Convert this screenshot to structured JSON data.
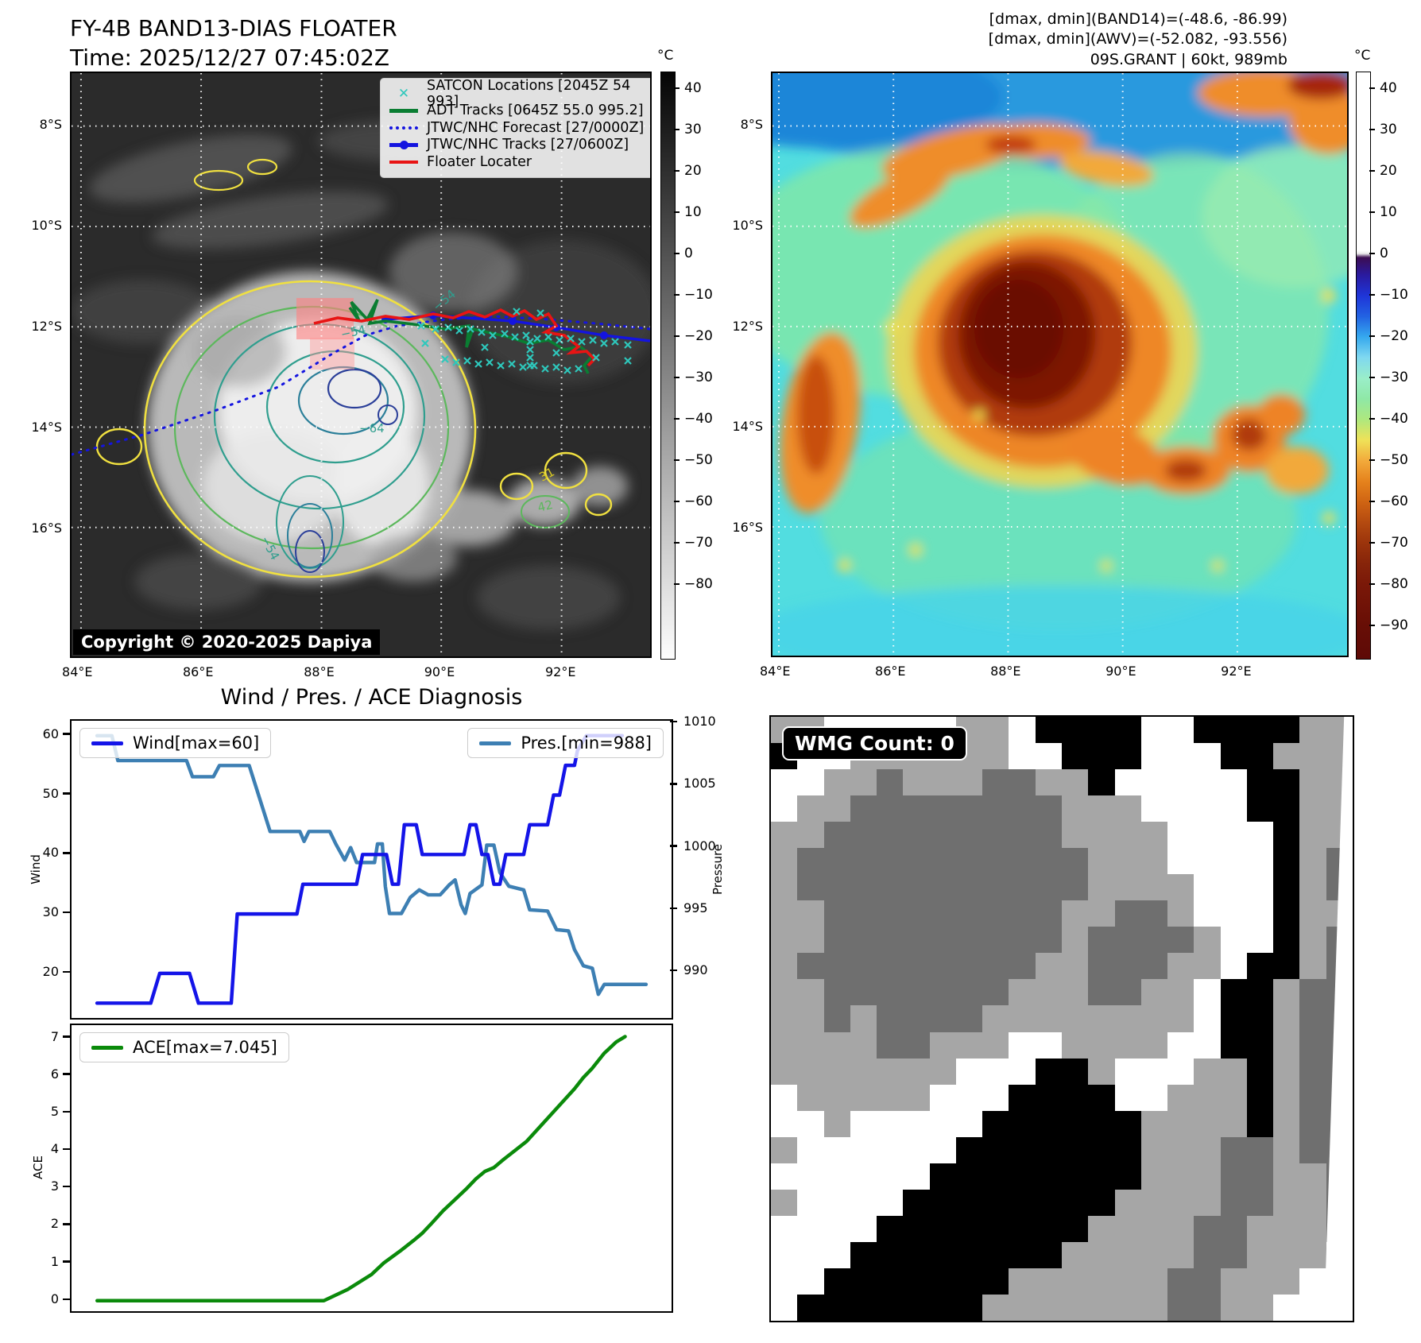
{
  "header": {
    "title": "FY-4B BAND13-DIAS FLOATER",
    "time": "Time: 2025/12/27 07:45:02Z",
    "info_lines": [
      "[dmax, dmin](BAND14)=(-48.6, -86.99)",
      "[dmax, dmin](AWV)=(-52.082, -93.556)",
      "09S.GRANT | 60kt, 989mb"
    ]
  },
  "left_map": {
    "legend": [
      {
        "label": "SATCON Locations [2045Z 54 993]",
        "marker": "x",
        "color": "#2ec8bc"
      },
      {
        "label": "ADT Tracks [0645Z 55.0 995.2]",
        "marker": "line",
        "color": "#0a7d32"
      },
      {
        "label": "JTWC/NHC Forecast [27/0000Z]",
        "marker": "dotted",
        "color": "#1414e0"
      },
      {
        "label": "JTWC/NHC Tracks [27/0600Z]",
        "marker": "line-marker",
        "color": "#1414e0"
      },
      {
        "label": "Floater Locater",
        "marker": "line",
        "color": "#e81414"
      }
    ],
    "copyright": "Copyright © 2020-2025 Dapiya",
    "lat_labels": [
      "8°S",
      "10°S",
      "12°S",
      "14°S",
      "16°S"
    ],
    "lon_labels": [
      "84°E",
      "86°E",
      "88°E",
      "90°E",
      "92°E"
    ],
    "contour_labels": [
      "−54",
      "−54",
      "−64",
      "−54",
      "31",
      "42"
    ],
    "colorbar": {
      "unit": "°C",
      "ticks": [
        40,
        30,
        20,
        10,
        0,
        -10,
        -20,
        -30,
        -40,
        -50,
        -60,
        -70,
        -80
      ]
    }
  },
  "right_map": {
    "lat_labels": [
      "8°S",
      "10°S",
      "12°S",
      "14°S",
      "16°S"
    ],
    "lon_labels": [
      "84°E",
      "86°E",
      "88°E",
      "90°E",
      "92°E"
    ],
    "colorbar": {
      "unit": "°C",
      "ticks": [
        40,
        30,
        20,
        10,
        0,
        -10,
        -20,
        -30,
        -40,
        -50,
        -60,
        -70,
        -80,
        -90
      ]
    }
  },
  "diagnosis": {
    "title": "Wind / Pres. / ACE Diagnosis",
    "wind_axis_label": "Wind",
    "pressure_axis_label": "Pressure",
    "ace_axis_label": "ACE",
    "wind_legend": "Wind[max=60]",
    "pres_legend": "Pres.[min=988]",
    "ace_legend": "ACE[max=7.045]",
    "wind_ticks": [
      20,
      30,
      40,
      50,
      60
    ],
    "pressure_ticks": [
      990,
      995,
      1000,
      1005,
      1010
    ],
    "ace_ticks": [
      0,
      1,
      2,
      3,
      4,
      5,
      6,
      7
    ]
  },
  "wmg": {
    "label": "WMG Count: 0",
    "palette": {
      "W": "#ffffff",
      "L": "#a6a6a6",
      "D": "#6f6f6f",
      "B": "#000000"
    },
    "grid": [
      "LLWWWWWLLWBBBBWWBBBBLL",
      "BWWLLLLLLWWBBBWWWBBLLL",
      "WWLLDLLLDDLLBWWWWWBBLL",
      "WLLDDDDDDDDLLLWWWWBBLL",
      "LLDDDDDDDDDLLLLWWWWBLL",
      "LDDDDDDDDDDDLLLWWWWBLD",
      "LDDDDDDDDDDDLLLLWWWBLD",
      "LLDDDDDDDDDLLDDLWWWBLL",
      "LLDDDDDDDDDLDDDDLWWBLD",
      "LDDDDDDDDDLLDDDLLWBBLD",
      "LLDDDDDDDLLLDDLLWBBLDD",
      "LLDLDDDDLLLLLLLLWBBLDD",
      "LLLLDDLLLWWLLLLWWBBLDD",
      "LLLLLLLWWWBBLWWWLLBLDD",
      "WLLLLLWWWBBBBWWLLLBLDD",
      "WWLWWWWWBBBBBBLLLLBLDD",
      "LWWWWWWBBBBBBBLLLDDLDD",
      "WWWWWWBBBBBBBBLLLDDLLD",
      "LWWWWBBBBBBBBLLLLDDLLD",
      "WWWWBBBBBBBBLLLLDDLLLD",
      "WWWBBBBBBBBLLLLLDDLLLW",
      "WWBBBBBBBLLLLLLDDLLLWW",
      "WBBBBBBBLLLLLLLDDLLWWW"
    ]
  },
  "chart_data": [
    {
      "type": "line",
      "title": "Wind / Pres. / ACE Diagnosis",
      "xlabel": "",
      "ylabel_left": "Wind",
      "ylabel_right": "Pressure",
      "ylim_left": [
        12.5,
        62.5
      ],
      "ylim_right": [
        986.3,
        1010.2
      ],
      "grid": false,
      "legend_position": "upper-left / upper-right",
      "series": [
        {
          "name": "Wind[max=60]",
          "axis": "left",
          "color": "#1414e8",
          "max": 60,
          "points": [
            [
              4,
              15
            ],
            [
              13,
              15
            ],
            [
              14.5,
              20
            ],
            [
              19.5,
              20
            ],
            [
              21,
              15
            ],
            [
              26.5,
              15
            ],
            [
              27.5,
              30
            ],
            [
              37.5,
              30
            ],
            [
              38.5,
              35
            ],
            [
              47.5,
              35
            ],
            [
              48.5,
              40
            ],
            [
              52.5,
              40
            ],
            [
              53.5,
              35
            ],
            [
              54.5,
              35
            ],
            [
              55.5,
              45
            ],
            [
              57.5,
              45
            ],
            [
              58.5,
              40
            ],
            [
              65.5,
              40
            ],
            [
              66.5,
              45
            ],
            [
              67.5,
              45
            ],
            [
              68.5,
              40
            ],
            [
              69.5,
              40
            ],
            [
              70.5,
              35
            ],
            [
              71.5,
              35
            ],
            [
              72.5,
              40
            ],
            [
              75.5,
              40
            ],
            [
              76.5,
              45
            ],
            [
              79.5,
              45
            ],
            [
              80.5,
              50
            ],
            [
              81.5,
              50
            ],
            [
              82.5,
              55
            ],
            [
              84,
              55
            ],
            [
              84.5,
              57.5
            ],
            [
              86,
              60
            ],
            [
              92,
              60
            ]
          ]
        },
        {
          "name": "Pres.[min=988]",
          "axis": "right",
          "color": "#3d7fb3",
          "min": 988,
          "points": [
            [
              4,
              1009
            ],
            [
              6.5,
              1009
            ],
            [
              7.5,
              1007
            ],
            [
              19,
              1007
            ],
            [
              20,
              1005.7
            ],
            [
              23.5,
              1005.7
            ],
            [
              24.5,
              1006.6
            ],
            [
              29.5,
              1006.6
            ],
            [
              33,
              1001.3
            ],
            [
              38,
              1001.3
            ],
            [
              38.7,
              1000.5
            ],
            [
              39.5,
              1001.3
            ],
            [
              43,
              1001.3
            ],
            [
              44,
              1000.3
            ],
            [
              45.5,
              999
            ],
            [
              46.5,
              1000
            ],
            [
              47.5,
              998.8
            ],
            [
              50.5,
              998.8
            ],
            [
              51,
              1000.3
            ],
            [
              51.8,
              1000.3
            ],
            [
              52.3,
              996.9
            ],
            [
              53,
              994.7
            ],
            [
              55,
              994.7
            ],
            [
              56.5,
              996
            ],
            [
              58,
              996.6
            ],
            [
              59.5,
              996.2
            ],
            [
              61.5,
              996.2
            ],
            [
              63,
              997
            ],
            [
              64,
              997.4
            ],
            [
              65,
              995.4
            ],
            [
              65.7,
              994.7
            ],
            [
              66.5,
              996.3
            ],
            [
              68.5,
              997
            ],
            [
              69.3,
              1000.2
            ],
            [
              70.5,
              1000.2
            ],
            [
              71.5,
              998
            ],
            [
              73,
              996.9
            ],
            [
              75.5,
              996.6
            ],
            [
              76.5,
              995
            ],
            [
              79.5,
              994.9
            ],
            [
              81,
              993.4
            ],
            [
              83,
              993.3
            ],
            [
              84,
              991.8
            ],
            [
              85.5,
              990.5
            ],
            [
              87,
              990.3
            ],
            [
              88,
              988.2
            ],
            [
              89,
              989
            ],
            [
              96,
              989
            ]
          ]
        }
      ]
    },
    {
      "type": "line",
      "title": "ACE",
      "ylabel_left": "ACE",
      "ylim": [
        -0.28,
        7.35
      ],
      "grid": false,
      "series": [
        {
          "name": "ACE[max=7.045]",
          "color": "#0a8a0a",
          "max": 7.045,
          "points": [
            [
              4,
              0
            ],
            [
              42,
              0
            ],
            [
              46,
              0.3
            ],
            [
              50,
              0.7
            ],
            [
              52,
              1
            ],
            [
              55,
              1.35
            ],
            [
              57,
              1.6
            ],
            [
              58.5,
              1.8
            ],
            [
              60,
              2.05
            ],
            [
              62,
              2.4
            ],
            [
              64,
              2.7
            ],
            [
              66,
              3
            ],
            [
              67.5,
              3.25
            ],
            [
              69,
              3.45
            ],
            [
              70.5,
              3.55
            ],
            [
              72,
              3.75
            ],
            [
              74,
              4
            ],
            [
              76,
              4.25
            ],
            [
              78,
              4.6
            ],
            [
              80,
              4.95
            ],
            [
              82,
              5.3
            ],
            [
              84,
              5.65
            ],
            [
              85.5,
              5.95
            ],
            [
              87,
              6.2
            ],
            [
              89,
              6.6
            ],
            [
              91,
              6.9
            ],
            [
              92.5,
              7.045
            ]
          ]
        }
      ]
    }
  ]
}
